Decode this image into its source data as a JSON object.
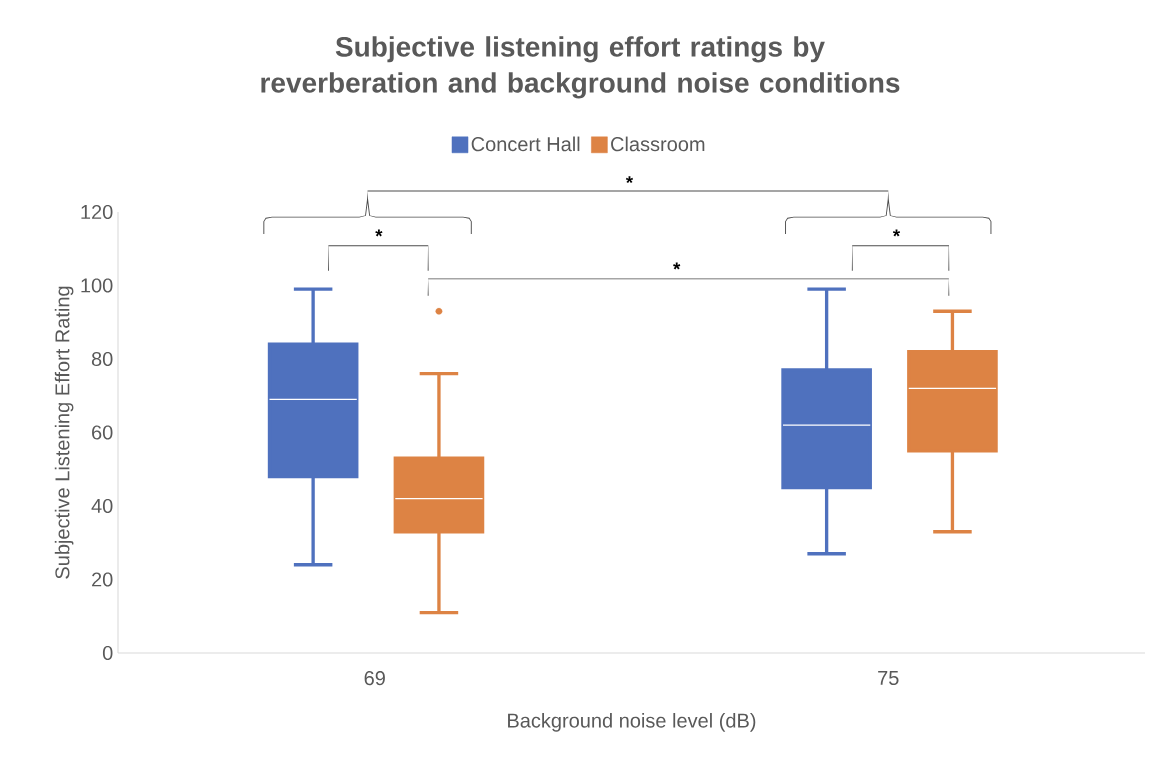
{
  "chart_data": {
    "type": "box",
    "title": "Subjective listening effort ratings by reverberation and background noise conditions",
    "xlabel": "Background noise level (dB)",
    "ylabel": "Subjective Listening Effort Rating",
    "categories": [
      "69",
      "75"
    ],
    "series": [
      {
        "name": "Concert Hall",
        "color": "#4f71be",
        "boxes": [
          {
            "low": 24,
            "q1": 48,
            "median": 69,
            "q3": 84,
            "high": 99
          },
          {
            "low": 27,
            "q1": 45,
            "median": 62,
            "q3": 77,
            "high": 99
          }
        ]
      },
      {
        "name": "Classroom",
        "color": "#dd8344",
        "boxes": [
          {
            "low": 11,
            "q1": 33,
            "median": 42,
            "q3": 53,
            "high": 76,
            "outliers": [
              93
            ]
          },
          {
            "low": 33,
            "q1": 55,
            "median": 72,
            "q3": 82,
            "high": 93
          }
        ]
      }
    ],
    "ylim": [
      0,
      120
    ],
    "yticks": [
      0,
      20,
      40,
      60,
      80,
      100,
      120
    ],
    "legend": "top",
    "annotations": [
      "*",
      "*",
      "*",
      "*"
    ]
  }
}
